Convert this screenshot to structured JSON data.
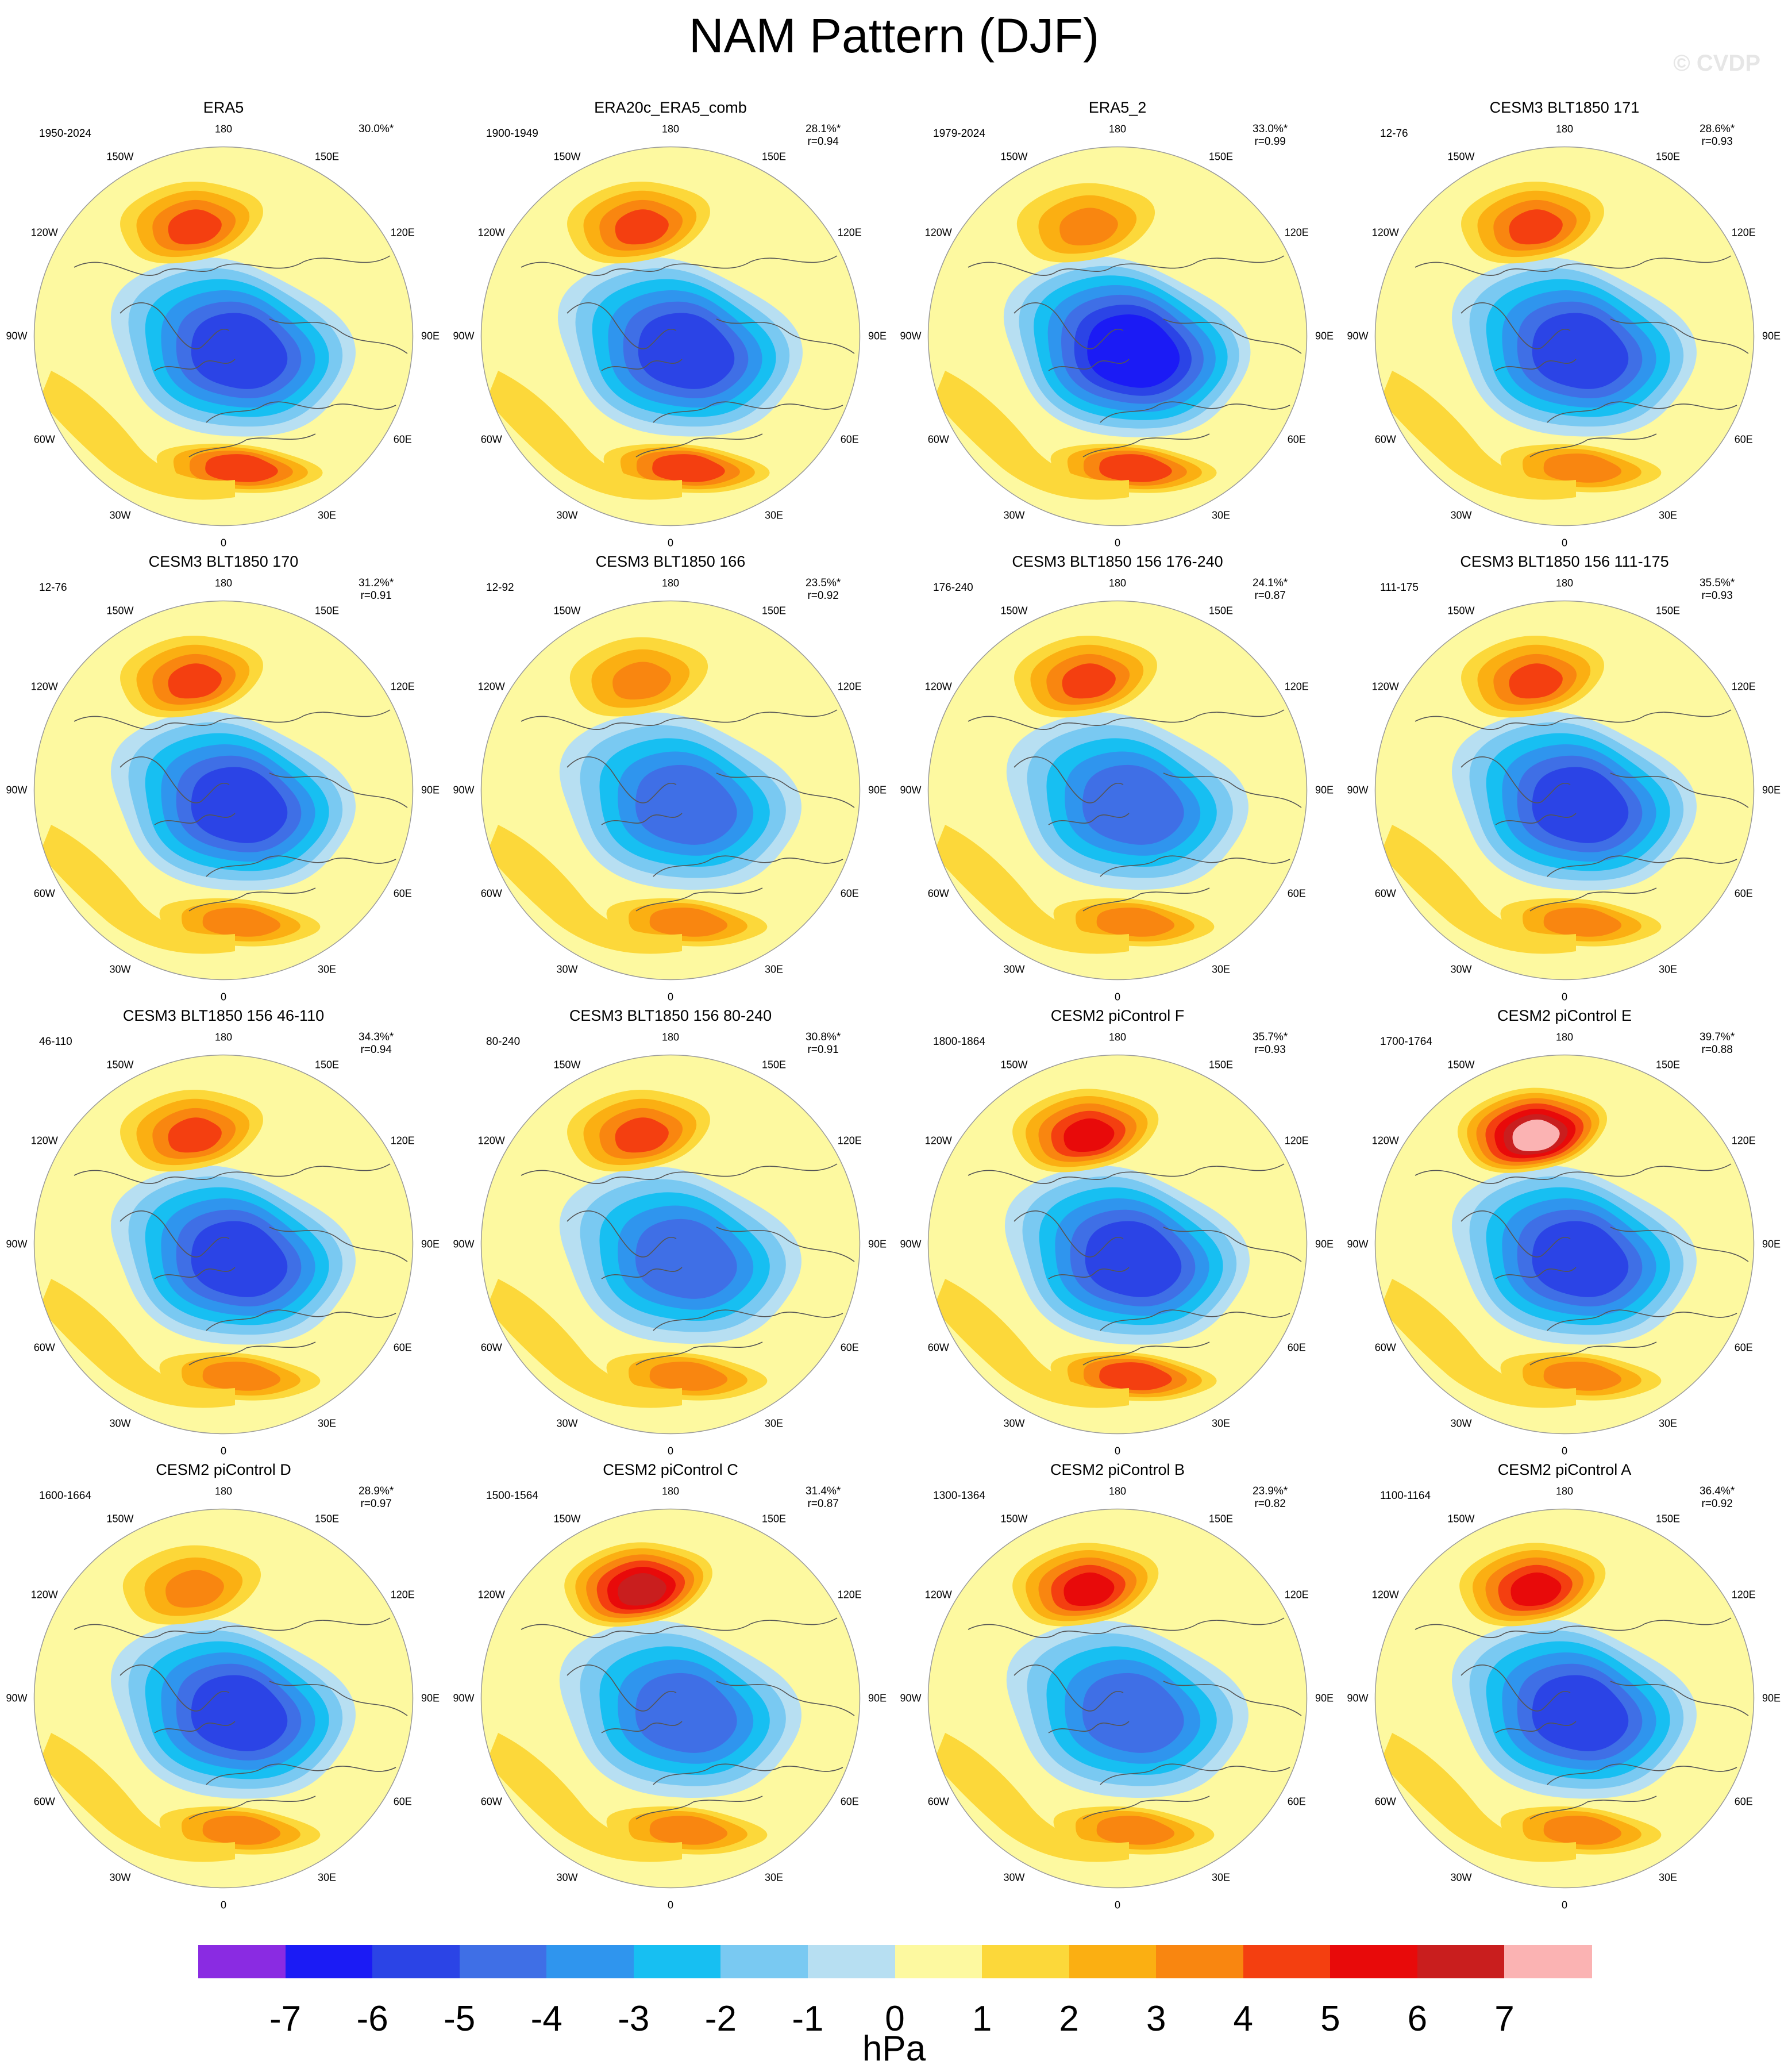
{
  "figure": {
    "title": "NAM Pattern (DJF)",
    "watermark": "© CVDP",
    "units": "hPa",
    "colors": {
      "coast": "#555555",
      "rim": "#9a9a9a"
    },
    "colorbar": {
      "colors": [
        "#8a2be2",
        "#1b1bf5",
        "#2b44e6",
        "#3f6fe6",
        "#2f95ee",
        "#17bff2",
        "#79c9f2",
        "#b7dff2",
        "#fdf9a0",
        "#fcd83a",
        "#fbaf12",
        "#f98610",
        "#f43f10",
        "#e80a0a",
        "#c91e1e",
        "#fbb3b3"
      ],
      "ticks": [
        "-7",
        "-6",
        "-5",
        "-4",
        "-3",
        "-2",
        "-1",
        "0",
        "1",
        "2",
        "3",
        "4",
        "5",
        "6",
        "7"
      ]
    },
    "longitude_labels": [
      "180",
      "150E",
      "120E",
      "90E",
      "60E",
      "30E",
      "0",
      "30W",
      "60W",
      "90W",
      "120W",
      "150W"
    ]
  },
  "chart_data": {
    "type": "map",
    "projection": "north polar stereographic",
    "field": "NAM pattern, DJF sea level pressure",
    "units": "hPa",
    "contour_levels": [
      -7,
      -6,
      -5,
      -4,
      -3,
      -2,
      -1,
      0,
      1,
      2,
      3,
      4,
      5,
      6,
      7
    ],
    "panels": [
      {
        "title": "ERA5",
        "period": "1950-2024",
        "pct": "30.0%*",
        "r": "",
        "pac": 4,
        "atl": 4,
        "min": -6
      },
      {
        "title": "ERA20c_ERA5_comb",
        "period": "1900-1949",
        "pct": "28.1%*",
        "r": "r=0.94",
        "pac": 4,
        "atl": 4,
        "min": -6
      },
      {
        "title": "ERA5_2",
        "period": "1979-2024",
        "pct": "33.0%*",
        "r": "r=0.99",
        "pac": 3,
        "atl": 4,
        "min": -7
      },
      {
        "title": "CESM3 BLT1850 171",
        "period": "12-76",
        "pct": "28.6%*",
        "r": "r=0.93",
        "pac": 4,
        "atl": 3,
        "min": -6
      },
      {
        "title": "CESM3 BLT1850 170",
        "period": "12-76",
        "pct": "31.2%*",
        "r": "r=0.91",
        "pac": 4,
        "atl": 3,
        "min": -6
      },
      {
        "title": "CESM3 BLT1850 166",
        "period": "12-92",
        "pct": "23.5%*",
        "r": "r=0.92",
        "pac": 3,
        "atl": 3,
        "min": -5
      },
      {
        "title": "CESM3 BLT1850 156 176-240",
        "period": "176-240",
        "pct": "24.1%*",
        "r": "r=0.87",
        "pac": 4,
        "atl": 3,
        "min": -5
      },
      {
        "title": "CESM3 BLT1850 156 111-175",
        "period": "111-175",
        "pct": "35.5%*",
        "r": "r=0.93",
        "pac": 4,
        "atl": 3,
        "min": -6
      },
      {
        "title": "CESM3 BLT1850 156 46-110",
        "period": "46-110",
        "pct": "34.3%*",
        "r": "r=0.94",
        "pac": 4,
        "atl": 3,
        "min": -6
      },
      {
        "title": "CESM3 BLT1850 156 80-240",
        "period": "80-240",
        "pct": "30.8%*",
        "r": "r=0.91",
        "pac": 4,
        "atl": 3,
        "min": -5
      },
      {
        "title": "CESM2 piControl F",
        "period": "1800-1864",
        "pct": "35.7%*",
        "r": "r=0.93",
        "pac": 5,
        "atl": 4,
        "min": -6
      },
      {
        "title": "CESM2 piControl E",
        "period": "1700-1764",
        "pct": "39.7%*",
        "r": "r=0.88",
        "pac": 7,
        "atl": 3,
        "min": -6
      },
      {
        "title": "CESM2 piControl D",
        "period": "1600-1664",
        "pct": "28.9%*",
        "r": "r=0.97",
        "pac": 3,
        "atl": 3,
        "min": -6
      },
      {
        "title": "CESM2 piControl C",
        "period": "1500-1564",
        "pct": "31.4%*",
        "r": "r=0.87",
        "pac": 6,
        "atl": 3,
        "min": -5
      },
      {
        "title": "CESM2 piControl B",
        "period": "1300-1364",
        "pct": "23.9%*",
        "r": "r=0.82",
        "pac": 5,
        "atl": 3,
        "min": -5
      },
      {
        "title": "CESM2 piControl A",
        "period": "1100-1164",
        "pct": "36.4%*",
        "r": "r=0.92",
        "pac": 5,
        "atl": 3,
        "min": -6
      }
    ]
  }
}
